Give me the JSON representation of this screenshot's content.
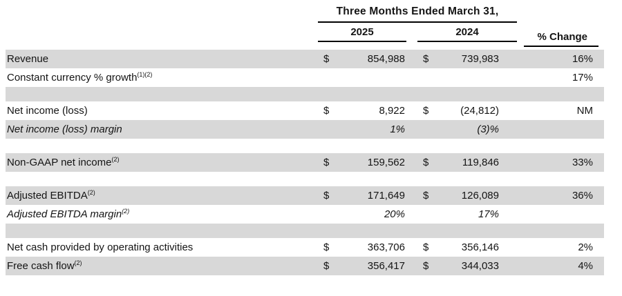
{
  "colors": {
    "row_stripe": "#d8d8d8",
    "rule": "#000000"
  },
  "table": {
    "header": {
      "period_title": "Three Months Ended March 31,",
      "col_2025": "2025",
      "col_2024": "2024",
      "change_label": "% Change"
    },
    "rows": [
      {
        "label": "Revenue",
        "d1": "$",
        "v1": "854,988",
        "d2": "$",
        "v2": "739,983",
        "change": "16%",
        "shaded": true
      },
      {
        "label": "Constant currency % growth",
        "sup": "(1)(2)",
        "change": "17%",
        "shaded": false
      },
      {
        "spacer": true,
        "shaded": true
      },
      {
        "label": "Net income (loss)",
        "d1": "$",
        "v1": "8,922",
        "d2": "$",
        "v2": "(24,812)",
        "change": "NM",
        "shaded": false
      },
      {
        "label": "Net income (loss) margin",
        "v1": "1%",
        "v2": "(3)%",
        "shaded": true,
        "italic": true
      },
      {
        "spacer": true,
        "shaded": false
      },
      {
        "label": "Non-GAAP net income",
        "sup": "(2)",
        "d1": "$",
        "v1": "159,562",
        "d2": "$",
        "v2": "119,846",
        "change": "33%",
        "shaded": true
      },
      {
        "spacer": true,
        "shaded": false
      },
      {
        "label": "Adjusted EBITDA",
        "sup": "(2)",
        "d1": "$",
        "v1": "171,649",
        "d2": "$",
        "v2": "126,089",
        "change": "36%",
        "shaded": true
      },
      {
        "label": "Adjusted EBITDA margin",
        "sup": "(2)",
        "v1": "20%",
        "v2": "17%",
        "shaded": false,
        "italic": true
      },
      {
        "spacer": true,
        "shaded": true
      },
      {
        "label": "Net cash provided by operating activities",
        "d1": "$",
        "v1": "363,706",
        "d2": "$",
        "v2": "356,146",
        "change": "2%",
        "shaded": false
      },
      {
        "label": "Free cash flow",
        "sup": "(2)",
        "d1": "$",
        "v1": "356,417",
        "d2": "$",
        "v2": "344,033",
        "change": "4%",
        "shaded": true
      }
    ]
  }
}
